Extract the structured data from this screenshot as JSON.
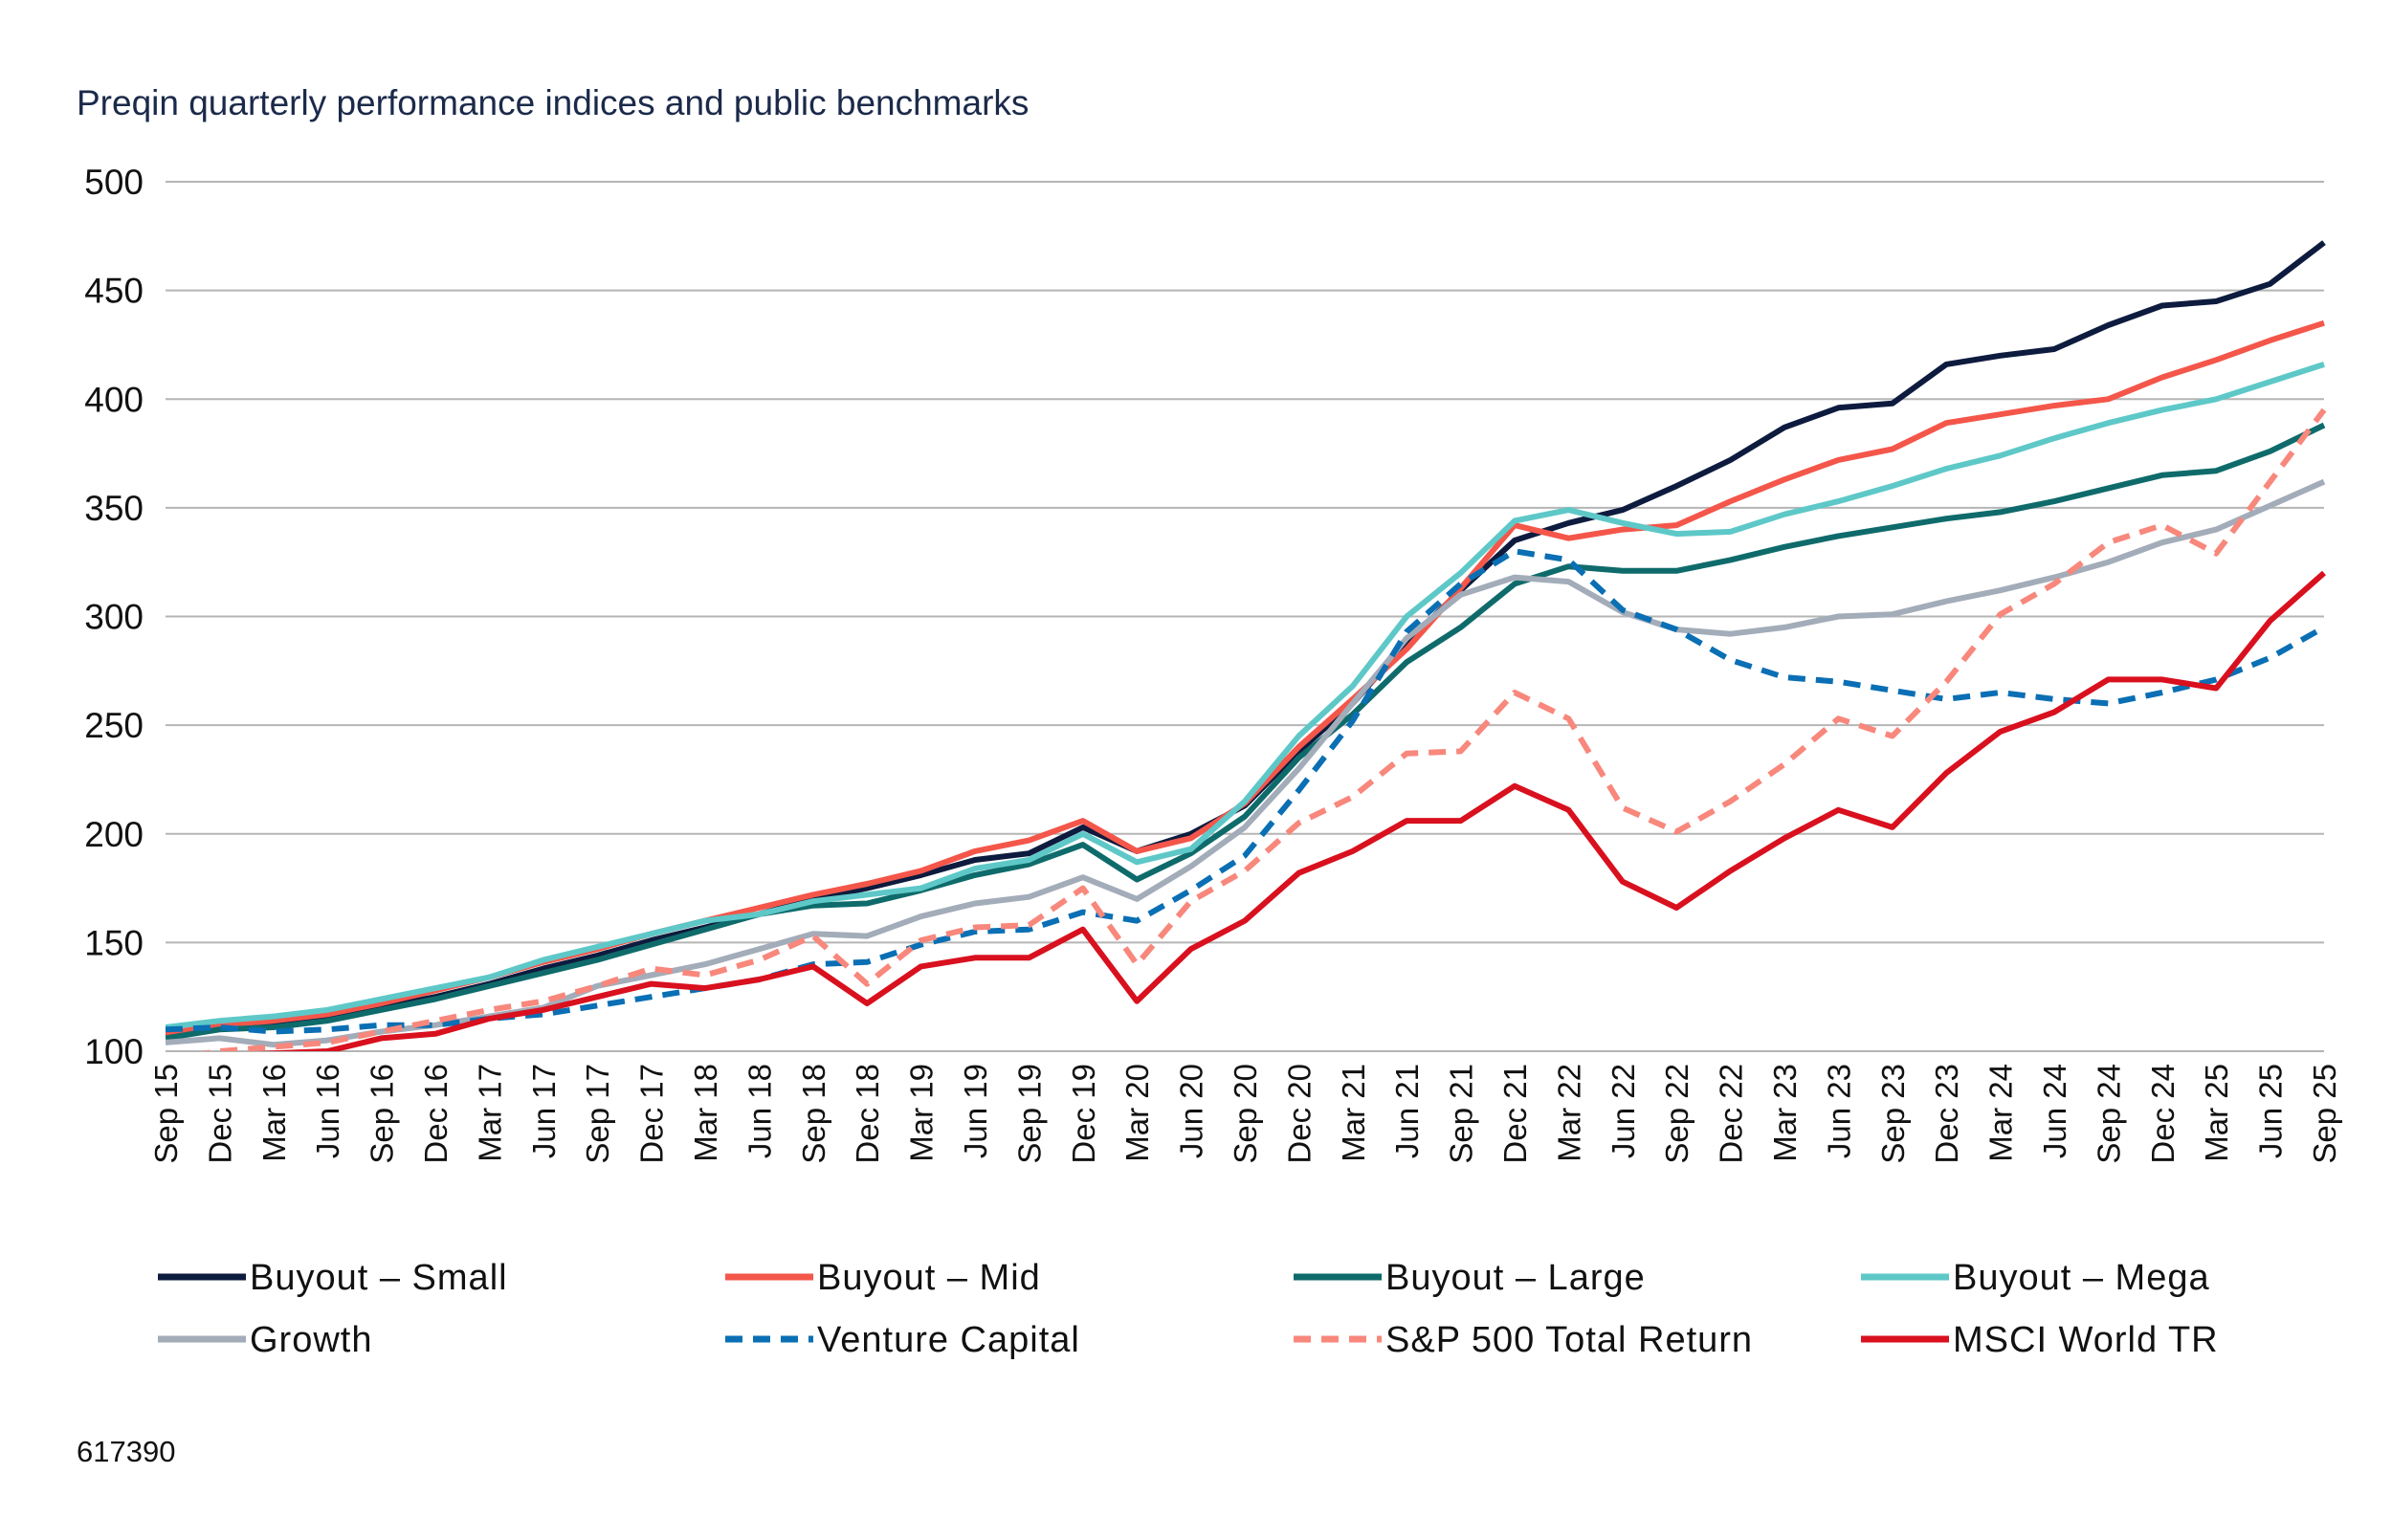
{
  "chart_data": {
    "type": "line",
    "title": "Preqin quarterly performance indices and public benchmarks",
    "footnote": "617390",
    "xlabel": "",
    "ylabel": "",
    "ylim": [
      100,
      500
    ],
    "yticks": [
      100,
      150,
      200,
      250,
      300,
      350,
      400,
      450,
      500
    ],
    "grid": true,
    "legend_position": "bottom",
    "categories": [
      "Sep 15",
      "Dec 15",
      "Mar 16",
      "Jun 16",
      "Sep 16",
      "Dec 16",
      "Mar 17",
      "Jun 17",
      "Sep 17",
      "Dec 17",
      "Mar 18",
      "Jun 18",
      "Sep 18",
      "Dec 18",
      "Mar 19",
      "Jun 19",
      "Sep 19",
      "Dec 19",
      "Mar 20",
      "Jun 20",
      "Sep 20",
      "Dec 20",
      "Mar 21",
      "Jun 21",
      "Sep 21",
      "Dec 21",
      "Mar 22",
      "Jun 22",
      "Sep 22",
      "Dec 22",
      "Mar 23",
      "Jun 23",
      "Sep 23",
      "Dec 23",
      "Mar 24",
      "Jun 24",
      "Sep 24",
      "Dec 24",
      "Mar 25",
      "Jun 25",
      "Sep 25"
    ],
    "series": [
      {
        "name": "Buyout – Small",
        "color": "#0d1b3e",
        "dash": false,
        "values": [
          108,
          111,
          113,
          116,
          120,
          125,
          131,
          138,
          144,
          151,
          157,
          163,
          170,
          175,
          181,
          188,
          191,
          203,
          192,
          200,
          213,
          238,
          260,
          288,
          312,
          335,
          343,
          349,
          360,
          372,
          387,
          396,
          398,
          416,
          420,
          423,
          434,
          443,
          445,
          453,
          472
        ]
      },
      {
        "name": "Buyout – Mid",
        "color": "#f4564a",
        "dash": false,
        "values": [
          108,
          112,
          114,
          117,
          122,
          128,
          134,
          141,
          147,
          154,
          160,
          166,
          172,
          177,
          183,
          192,
          197,
          206,
          192,
          198,
          214,
          240,
          262,
          285,
          313,
          342,
          336,
          340,
          342,
          353,
          363,
          372,
          377,
          389,
          393,
          397,
          400,
          410,
          418,
          427,
          435
        ]
      },
      {
        "name": "Buyout – Large",
        "color": "#0f6b6b",
        "dash": false,
        "values": [
          106,
          110,
          111,
          114,
          119,
          124,
          130,
          136,
          142,
          149,
          156,
          163,
          167,
          168,
          174,
          181,
          186,
          195,
          179,
          191,
          208,
          235,
          255,
          279,
          295,
          315,
          323,
          321,
          321,
          326,
          332,
          337,
          341,
          345,
          348,
          353,
          359,
          365,
          367,
          376,
          388
        ]
      },
      {
        "name": "Buyout – Mega",
        "color": "#5ec8c8",
        "dash": false,
        "values": [
          111,
          114,
          116,
          119,
          124,
          129,
          134,
          142,
          148,
          154,
          160,
          163,
          169,
          172,
          175,
          184,
          188,
          200,
          187,
          193,
          215,
          245,
          268,
          300,
          320,
          344,
          349,
          343,
          338,
          339,
          347,
          353,
          360,
          368,
          374,
          382,
          389,
          395,
          400,
          408,
          416
        ]
      },
      {
        "name": "Growth",
        "color": "#a3acb9",
        "dash": false,
        "values": [
          104,
          106,
          103,
          105,
          109,
          112,
          116,
          120,
          130,
          135,
          140,
          147,
          154,
          153,
          162,
          168,
          171,
          180,
          170,
          185,
          203,
          230,
          260,
          290,
          310,
          318,
          316,
          302,
          294,
          292,
          295,
          300,
          301,
          307,
          312,
          318,
          325,
          334,
          340,
          351,
          362
        ]
      },
      {
        "name": "Venture Capital",
        "color": "#0a6fb4",
        "dash": true,
        "values": [
          110,
          111,
          109,
          110,
          112,
          112,
          115,
          117,
          121,
          125,
          129,
          133,
          140,
          141,
          149,
          155,
          156,
          164,
          160,
          174,
          190,
          220,
          252,
          293,
          315,
          330,
          326,
          303,
          294,
          280,
          272,
          270,
          266,
          262,
          265,
          262,
          260,
          265,
          271,
          281,
          295
        ]
      },
      {
        "name": "S&P 500 Total Return",
        "color": "#f8877c",
        "dash": true,
        "values": [
          96,
          100,
          102,
          104,
          109,
          114,
          119,
          123,
          130,
          138,
          135,
          142,
          153,
          131,
          151,
          157,
          158,
          175,
          140,
          169,
          183,
          205,
          217,
          237,
          238,
          265,
          253,
          212,
          201,
          215,
          232,
          253,
          245,
          270,
          301,
          315,
          334,
          342,
          329,
          362,
          395
        ]
      },
      {
        "name": "MSCI World TR",
        "color": "#d9101e",
        "dash": false,
        "values": [
          96,
          98,
          99,
          100,
          106,
          108,
          115,
          119,
          125,
          131,
          129,
          133,
          139,
          122,
          139,
          143,
          143,
          156,
          123,
          147,
          160,
          182,
          192,
          206,
          206,
          222,
          211,
          178,
          166,
          183,
          198,
          211,
          203,
          228,
          247,
          256,
          271,
          271,
          267,
          298,
          320
        ]
      }
    ]
  }
}
